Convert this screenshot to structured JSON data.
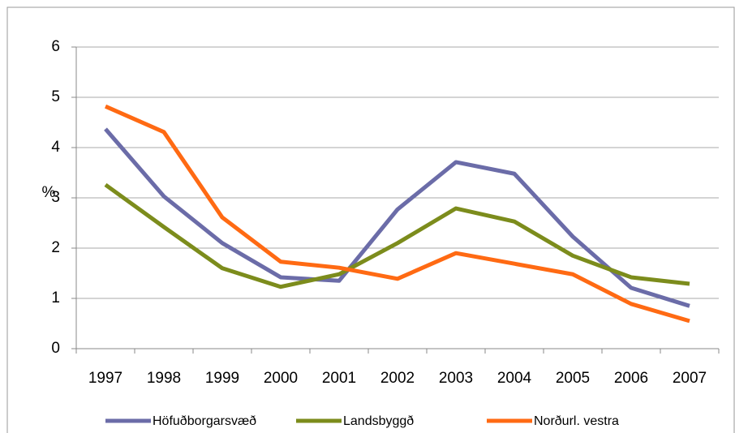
{
  "chart_data": {
    "type": "line",
    "y_label": "%",
    "categories": [
      "1997",
      "1998",
      "1999",
      "2000",
      "2001",
      "2002",
      "2003",
      "2004",
      "2005",
      "2006",
      "2007"
    ],
    "series": [
      {
        "name": "Höfuðborgarsvæð",
        "color": "#6b6ca8",
        "values": [
          4.37,
          3.03,
          2.1,
          1.42,
          1.35,
          2.77,
          3.71,
          3.48,
          2.23,
          1.21,
          0.85
        ]
      },
      {
        "name": "Landsbyggð",
        "color": "#7c8c1c",
        "values": [
          3.26,
          2.42,
          1.6,
          1.23,
          1.48,
          2.1,
          2.79,
          2.53,
          1.85,
          1.42,
          1.29
        ]
      },
      {
        "name": "Norðurl. vestra",
        "color": "#ff6a13",
        "values": [
          4.82,
          4.31,
          2.61,
          1.73,
          1.61,
          1.39,
          1.9,
          1.69,
          1.48,
          0.89,
          0.55
        ]
      }
    ],
    "ylim": [
      0,
      6
    ],
    "yticks": [
      0,
      1,
      2,
      3,
      4,
      5,
      6
    ],
    "grid": true,
    "legend": "bottom"
  }
}
